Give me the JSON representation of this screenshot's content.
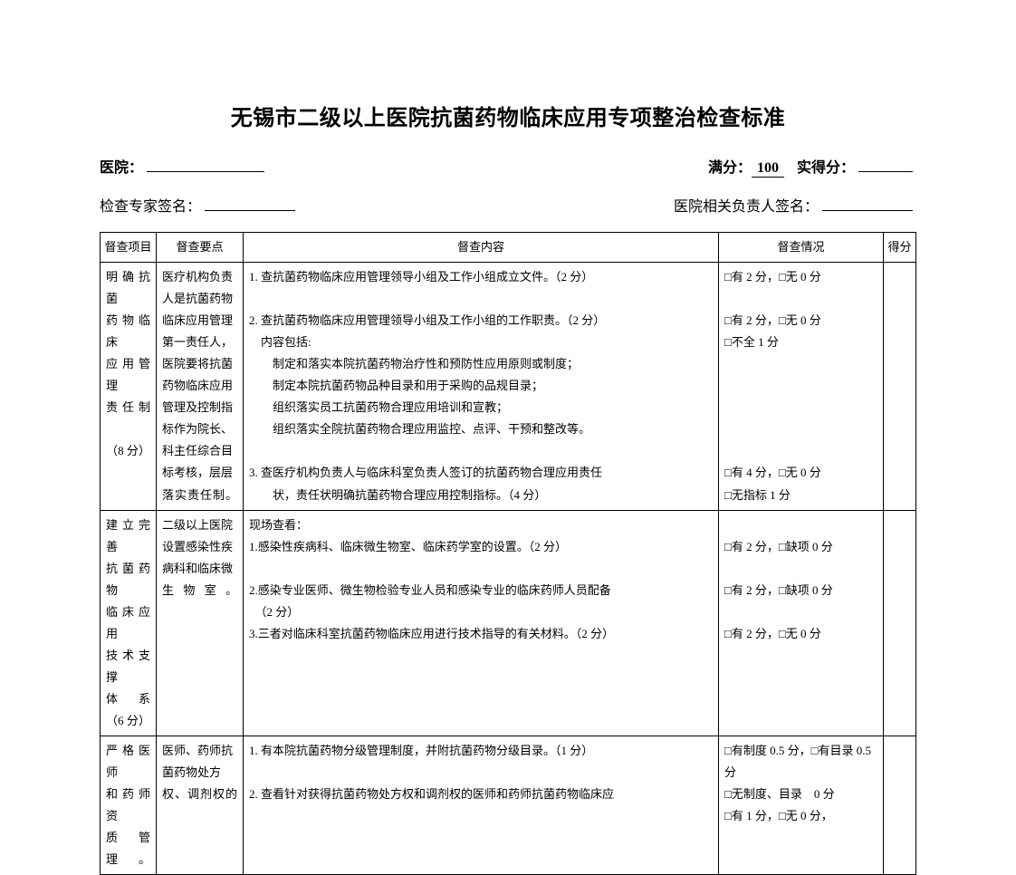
{
  "title": "无锡市二级以上医院抗菌药物临床应用专项整治检查标准",
  "meta": {
    "hospital_label": "医院：",
    "fullscore_label": "满分：",
    "fullscore_value": "100",
    "actual_label": "实得分：",
    "expert_label": "检查专家签名：",
    "responsible_label": "医院相关负责人签名："
  },
  "headers": {
    "project": "督查项目",
    "points": "督查要点",
    "content": "督查内容",
    "status": "督查情况",
    "score": "得分"
  },
  "rows": [
    {
      "project_lines": [
        "明确抗菌",
        "药物临床",
        "应用管理",
        "责任制",
        "",
        "（8 分）"
      ],
      "points": "医疗机构负责人是抗菌药物临床应用管理第一责任人，医院要将抗菌药物临床应用管理及控制指标作为院长、科主任综合目标考核，层层落实责任制。",
      "content_lines": [
        "1. 查抗菌药物临床应用管理领导小组及工作小组成立文件。（2 分）",
        "",
        "2. 查抗菌药物临床应用管理领导小组及工作小组的工作职责。（2 分）",
        "　内容包括:",
        "　　制定和落实本院抗菌药物治疗性和预防性应用原则或制度；",
        "　　制定本院抗菌药物品种目录和用于采购的品规目录；",
        "　　组织落实员工抗菌药物合理应用培训和宣教；",
        "　　组织落实全院抗菌药物合理应用监控、点评、干预和整改等。",
        "",
        "3. 查医疗机构负责人与临床科室负责人签订的抗菌药物合理应用责任",
        "　　状，责任状明确抗菌药物合理应用控制指标。（4 分）"
      ],
      "status_lines": [
        "□有 2 分，□无 0 分",
        "",
        "□有 2 分，□无 0 分",
        "□不全 1 分",
        "",
        "",
        "",
        "",
        "",
        "□有 4 分，□无 0 分",
        "□无指标 1 分"
      ],
      "score": ""
    },
    {
      "project_lines": [
        "建立完善",
        "抗菌药物",
        "临床应用",
        "技术支撑",
        "体系",
        "（6 分）"
      ],
      "points": "二级以上医院设置感染性疾病科和临床微生物室。",
      "content_lines": [
        "现场查看：",
        "1.感染性疾病科、临床微生物室、临床药学室的设置。（2 分）",
        "",
        "2.感染专业医师、微生物检验专业人员和感染专业的临床药师人员配备",
        "　（2 分）",
        "3.三者对临床科室抗菌药物临床应用进行技术指导的有关材料。（2 分）"
      ],
      "status_lines": [
        "",
        "□有 2 分，□缺项 0 分",
        "",
        "□有 2 分，□缺项 0 分",
        "",
        "□有 2 分，□无 0 分"
      ],
      "score": ""
    },
    {
      "project_lines": [
        "严格医师",
        "和药师资",
        "质管理。"
      ],
      "points": "医师、药师抗菌药物处方权、调剂权的",
      "content_lines": [
        "1. 有本院抗菌药物分级管理制度，并附抗菌药物分级目录。（1 分）",
        "",
        "2. 查看针对获得抗菌药物处方权和调剂权的医师和药师抗菌药物临床应"
      ],
      "status_lines": [
        "□有制度 0.5 分，□有目录 0.5 分",
        "□无制度、目录　0 分",
        "□有 1 分，□无 0 分，"
      ],
      "score": ""
    }
  ]
}
